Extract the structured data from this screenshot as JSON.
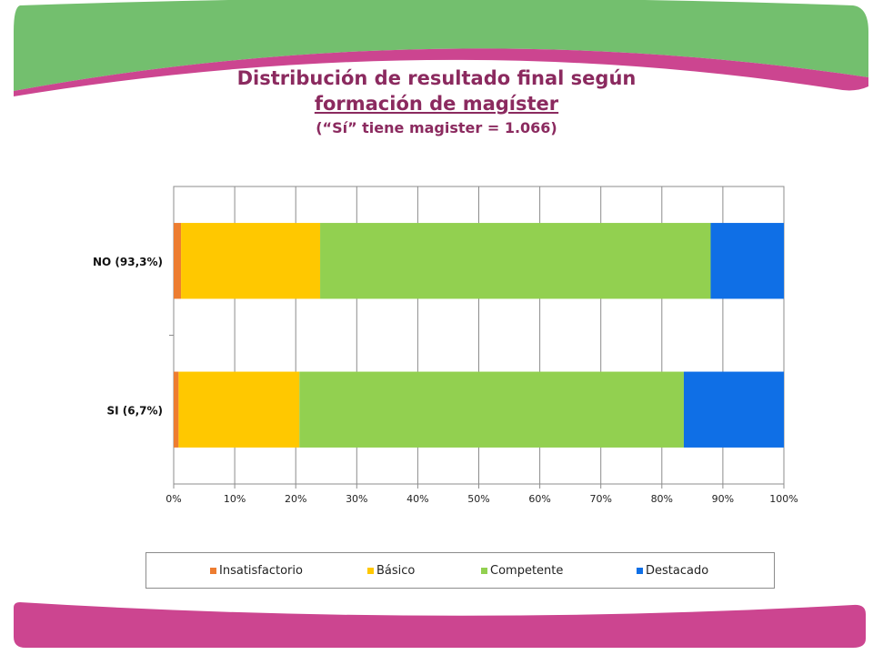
{
  "title": {
    "line1": "Distribución de resultado final según",
    "line2": "formación de magíster",
    "line3": "(“Sí” tiene magister = 1.066)"
  },
  "colors": {
    "title": "#8b2a5f",
    "banner_green": "#73bf6e",
    "banner_pink": "#cc4590",
    "grid": "#8c8c8c"
  },
  "chart_data": {
    "type": "bar",
    "orientation": "horizontal",
    "stacked": "percent",
    "categories": [
      "NO (93,3%)",
      "SI (6,7%)"
    ],
    "series": [
      {
        "name": "Insatisfactorio",
        "color": "#ed7d31",
        "values": [
          1.2,
          0.8
        ]
      },
      {
        "name": "Básico",
        "color": "#ffc800",
        "values": [
          22.8,
          19.8
        ]
      },
      {
        "name": "Competente",
        "color": "#92d050",
        "values": [
          64.0,
          63.0
        ]
      },
      {
        "name": "Destacado",
        "color": "#0f6fe6",
        "values": [
          12.0,
          16.4
        ]
      }
    ],
    "xlim": [
      0,
      100
    ],
    "xticks": [
      "0%",
      "10%",
      "20%",
      "30%",
      "40%",
      "50%",
      "60%",
      "70%",
      "80%",
      "90%",
      "100%"
    ],
    "grid": true,
    "legend_position": "bottom"
  }
}
